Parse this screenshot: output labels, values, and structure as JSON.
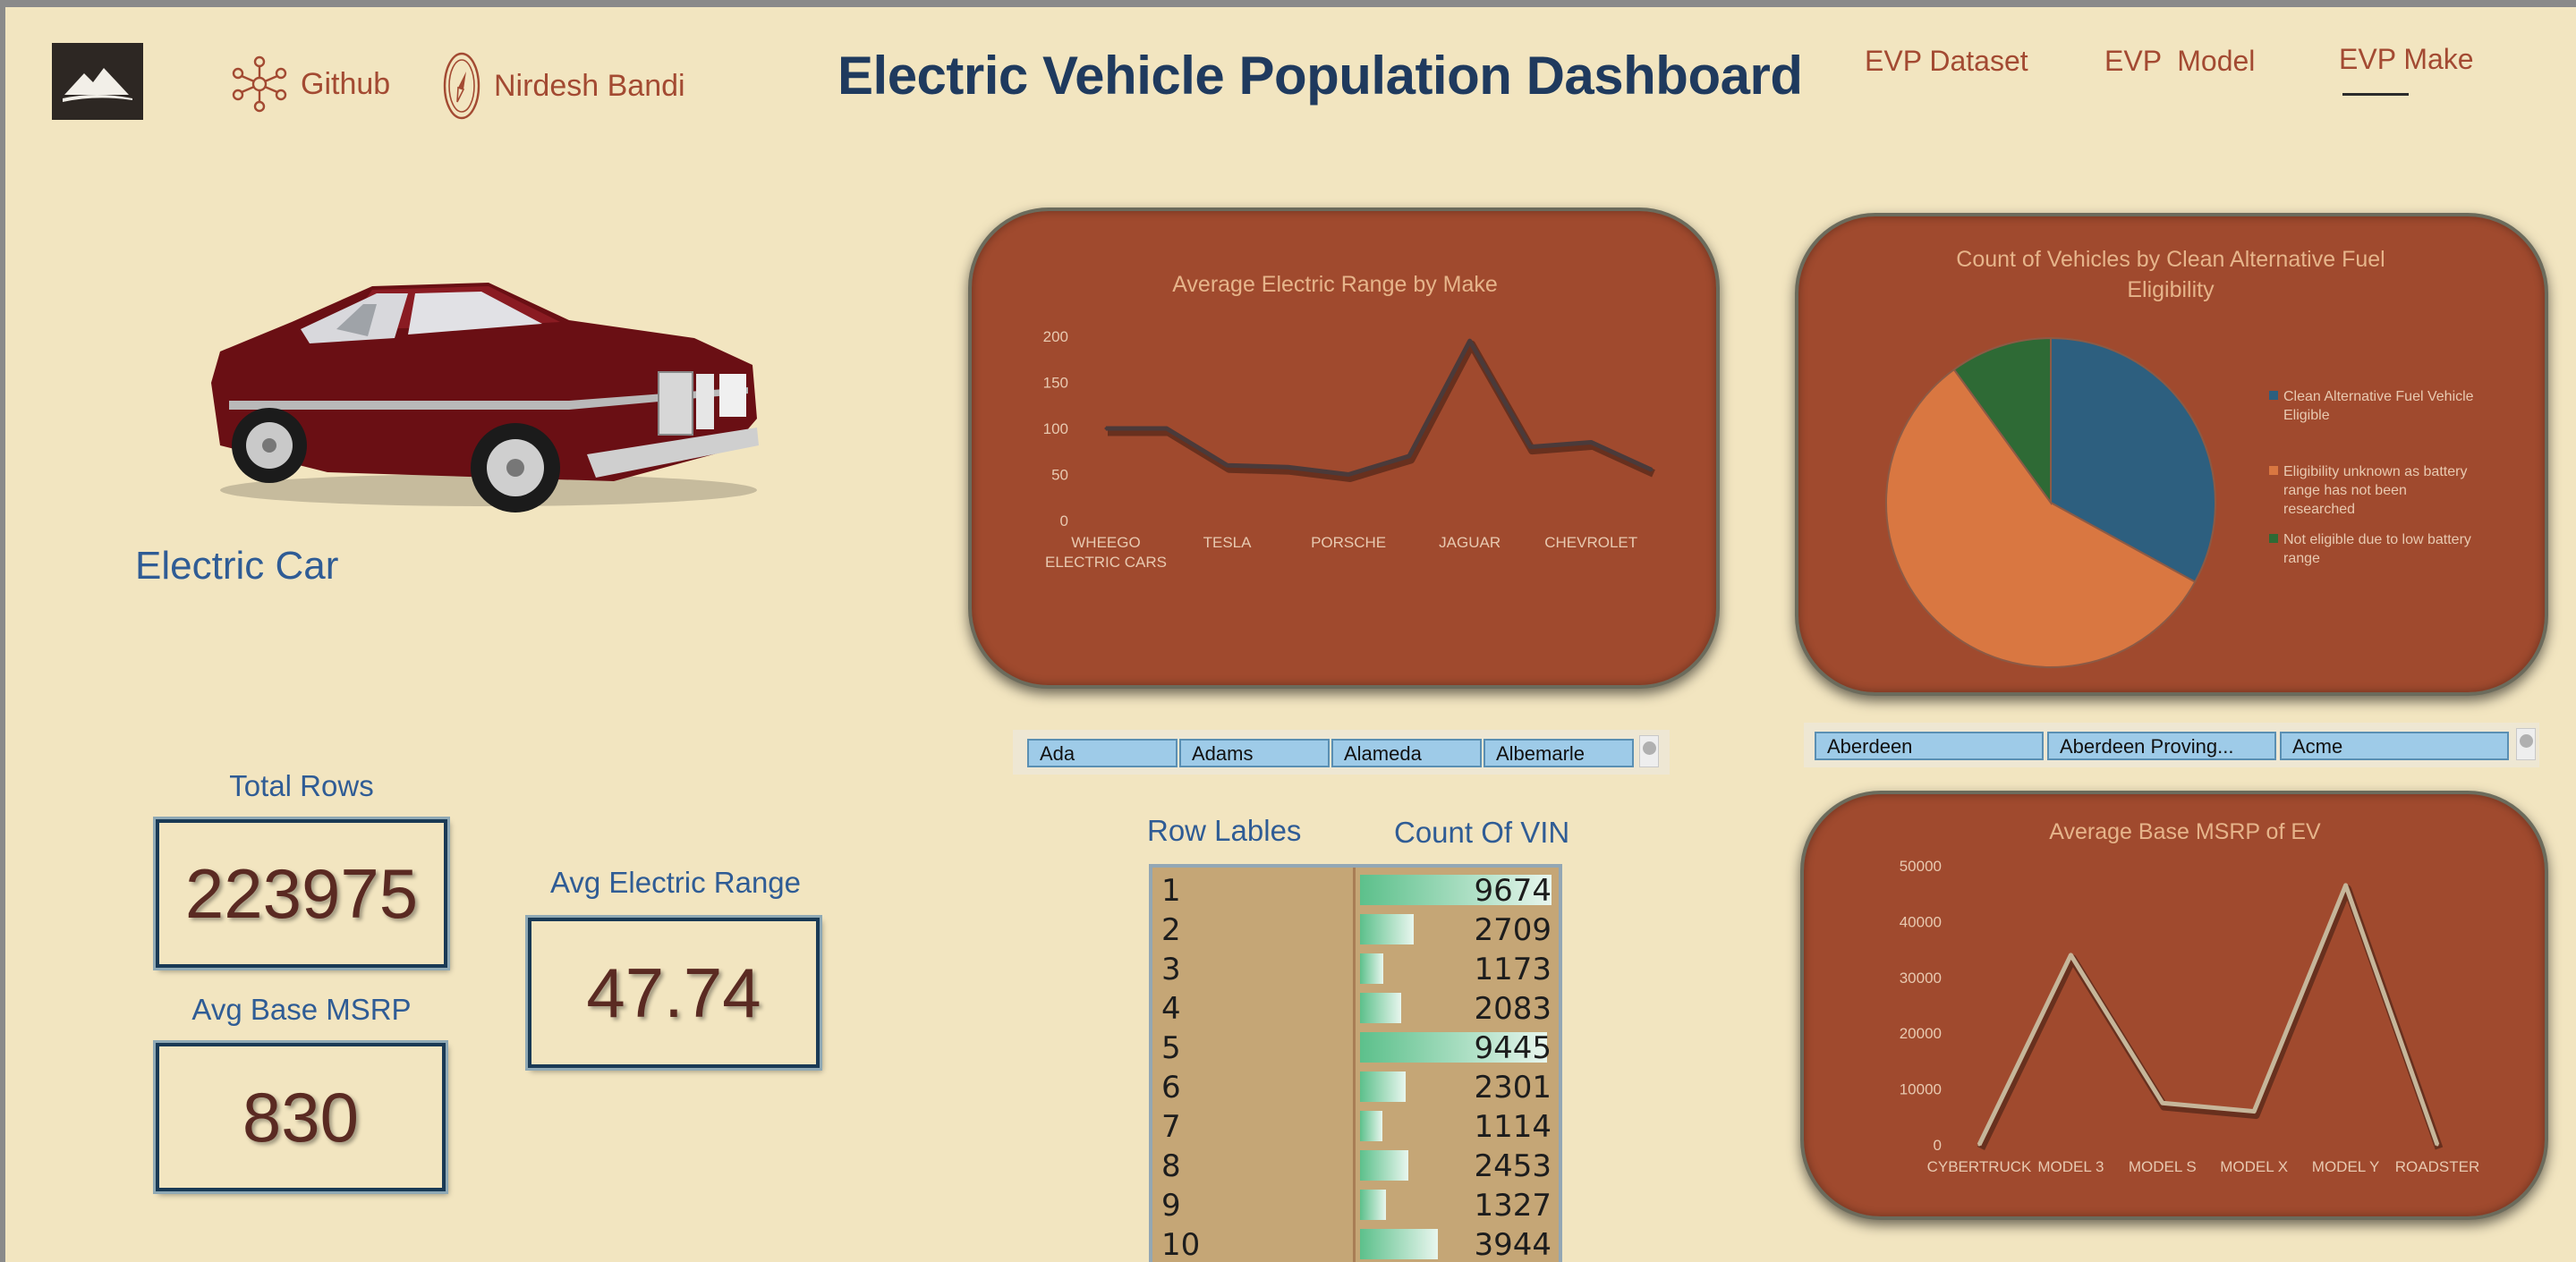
{
  "header": {
    "title": "Electric Vehicle Population Dashboard",
    "links": [
      {
        "label": "Github",
        "icon": "network-icon"
      },
      {
        "label": "Nirdesh Bandi",
        "icon": "compass-icon"
      }
    ],
    "nav": [
      {
        "label": "EVP Dataset",
        "active": false
      },
      {
        "label": "EVP  Model",
        "active": false
      },
      {
        "label": "EVP Make",
        "active": true
      }
    ]
  },
  "car": {
    "label": "Electric Car"
  },
  "kpis": {
    "total_rows": {
      "label": "Total Rows",
      "value": "223975"
    },
    "avg_range": {
      "label": "Avg Electric Range",
      "value": "47.74"
    },
    "avg_msrp": {
      "label": "Avg Base MSRP",
      "value": "830"
    }
  },
  "colors": {
    "background": "#f2e5c0",
    "panel": "#a04a2e",
    "accent_text": "#a34a32",
    "title": "#1f3a5e",
    "pie_eligible": "#2d5f7f",
    "pie_unknown": "#d97741",
    "pie_not_eligible": "#2e6a35"
  },
  "slicers": {
    "county": [
      "Ada",
      "Adams",
      "Alameda",
      "Albemarle"
    ],
    "city": [
      "Aberdeen",
      "Aberdeen Proving...",
      "Acme"
    ]
  },
  "pivot": {
    "col_labels": [
      "Row Lables",
      "Count Of VIN"
    ],
    "rows": [
      {
        "label": "1",
        "value": "9674"
      },
      {
        "label": "2",
        "value": "2709"
      },
      {
        "label": "3",
        "value": "1173"
      },
      {
        "label": "4",
        "value": "2083"
      },
      {
        "label": "5",
        "value": "9445"
      },
      {
        "label": "6",
        "value": "2301"
      },
      {
        "label": "7",
        "value": "1114"
      },
      {
        "label": "8",
        "value": "2453"
      },
      {
        "label": "9",
        "value": "1327"
      },
      {
        "label": "10",
        "value": "3944"
      }
    ]
  },
  "chart_data": [
    {
      "type": "line",
      "title": "Average Electric Range by Make",
      "ylim": [
        0,
        200
      ],
      "yticks": [
        0,
        50,
        100,
        150,
        200
      ],
      "x_tick_labels": [
        "WHEEGO ELECTRIC CARS",
        "TESLA",
        "PORSCHE",
        "JAGUAR",
        "CHEVROLET"
      ],
      "values": [
        100,
        100,
        60,
        58,
        50,
        70,
        195,
        80,
        85,
        55
      ],
      "grid": false
    },
    {
      "type": "pie",
      "title": "Count of Vehicles by Clean Alternative Fuel Eligibility",
      "labels": [
        "Clean Alternative Fuel Vehicle Eligible",
        "Eligibility unknown as battery range has not been researched",
        "Not eligible due to low battery range"
      ],
      "values": [
        33,
        57,
        10
      ],
      "legend": "right"
    },
    {
      "type": "line",
      "title": "Average Base MSRP of EV",
      "categories": [
        "CYBERTRUCK",
        "MODEL 3",
        "MODEL S",
        "MODEL X",
        "MODEL Y",
        "ROADSTER"
      ],
      "values": [
        0,
        34000,
        7500,
        6000,
        46500,
        0
      ],
      "ylim": [
        0,
        50000
      ],
      "yticks": [
        0,
        10000,
        20000,
        30000,
        40000,
        50000
      ],
      "grid": false
    }
  ]
}
